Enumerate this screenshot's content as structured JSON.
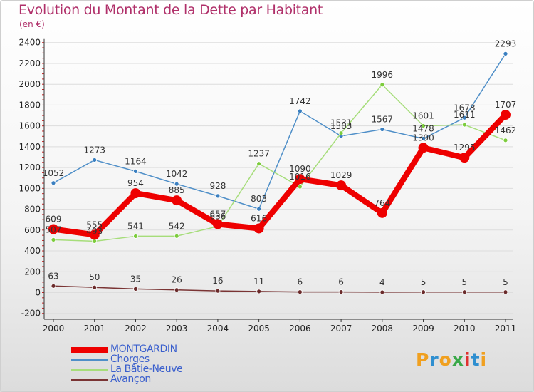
{
  "title": "Evolution du Montant de la Dette par Habitant",
  "unit": "(en €)",
  "brand": {
    "text": "Proxiti",
    "letter_colors": [
      "#f0a020",
      "#2f8fd0",
      "#f0a020",
      "#3aa848",
      "#e03030",
      "#2f8fd0",
      "#f0a020"
    ]
  },
  "colors": {
    "title": "#b0306a",
    "legend_text": "#3a5fcd",
    "axis": "#333333",
    "grid": "#dddddd"
  },
  "chart_data": {
    "type": "line",
    "title": "Evolution du Montant de la Dette par Habitant",
    "ylabel": "(en €)",
    "xlabel": "",
    "x": [
      "2000",
      "2001",
      "2002",
      "2003",
      "2004",
      "2005",
      "2006",
      "2007",
      "2008",
      "2009",
      "2010",
      "2011"
    ],
    "yticks": [
      -200,
      0,
      200,
      400,
      600,
      800,
      1000,
      1200,
      1400,
      1600,
      1800,
      2000,
      2200,
      2400
    ],
    "ylim": [
      -200,
      2400
    ],
    "grid": true,
    "legend_position": "bottom-left",
    "series": [
      {
        "name": "Chorges",
        "color": "#4f8fc8",
        "point": "#3a7fc0",
        "values": [
          1052,
          1273,
          1164,
          1042,
          928,
          803,
          1742,
          1503,
          1567,
          1478,
          1678,
          2293
        ]
      },
      {
        "name": "La Bâtie-Neuve",
        "color": "#a6dd7a",
        "point": "#7ccc3c",
        "values": [
          507,
          493,
          541,
          542,
          636,
          1237,
          1016,
          1531,
          1996,
          1601,
          1611,
          1462
        ]
      },
      {
        "name": "Avançon",
        "color": "#7a3434",
        "point": "#6a2a2a",
        "values": [
          63,
          50,
          35,
          26,
          16,
          11,
          6,
          6,
          4,
          5,
          5,
          5
        ]
      },
      {
        "name": "MONTGARDIN",
        "color": "#ee0000",
        "point": "#ee0000",
        "values": [
          609,
          555,
          954,
          885,
          657,
          616,
          1090,
          1029,
          764,
          1390,
          1295,
          1707
        ]
      }
    ],
    "legend_order": [
      "MONTGARDIN",
      "Chorges",
      "La Bâtie-Neuve",
      "Avançon"
    ]
  }
}
